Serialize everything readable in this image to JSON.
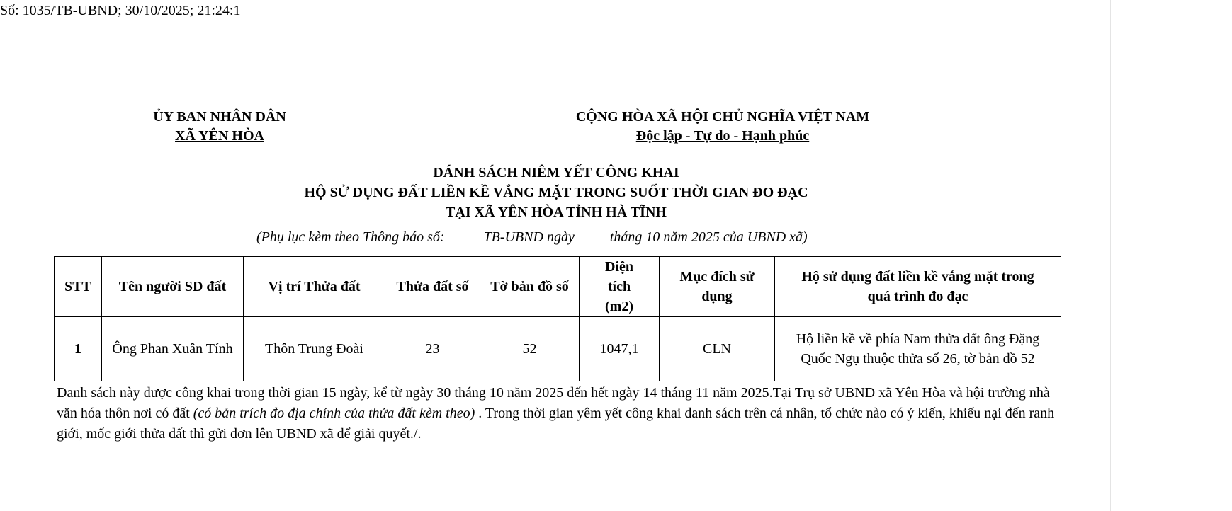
{
  "reference": "Số: 1035/TB-UBND; 30/10/2025; 21:24:1",
  "left_header": {
    "line1": "ỦY BAN NHÂN DÂN",
    "line2": "XÃ YÊN HÒA"
  },
  "right_header": {
    "line1": "CỘNG HÒA XÃ HỘI CHỦ NGHĨA VIỆT NAM",
    "line2": "Độc lập - Tự do - Hạnh phúc"
  },
  "title": {
    "line1": "DÁNH SÁCH NIÊM YẾT CÔNG KHAI",
    "line2": "HỘ SỬ DỤNG ĐẤT LIỀN KỀ VẮNG MẶT TRONG SUỐT THỜI GIAN ĐO ĐẠC",
    "line3": "TẠI XÃ YÊN HÒA TỈNH HÀ TĨNH"
  },
  "subtitle": "(Phụ lục kèm theo Thông báo số:           TB-UBND ngày          tháng 10 năm 2025 của UBND xã)",
  "table": {
    "headers": [
      "STT",
      "Tên người SD đất",
      "Vị trí Thửa đất",
      "Thửa đất số",
      "Tờ bản đồ số",
      "Diện tích (m2)",
      "Mục đích sử dụng",
      "Hộ sử dụng đất liền kề vắng mặt trong quá trình đo đạc"
    ],
    "rows": [
      [
        "1",
        "Ông Phan Xuân Tính",
        "Thôn Trung Đoài",
        "23",
        "52",
        "1047,1",
        "CLN",
        "Hộ liền kề về phía Nam thửa đất ông Đặng Quốc Ngụ thuộc thửa số 26, tờ bản đồ 52"
      ]
    ]
  },
  "footer": {
    "part1": "Danh sách này được công khai trong thời gian 15 ngày,  kể từ ngày 30 tháng 10 năm 2025 đến hết ngày 14 tháng 11 năm 2025.Tại Trụ sở UBND xã Yên Hòa và hội trường nhà văn hóa thôn nơi có đất ",
    "italic": "(có bản trích đo địa chính của thửa đất kèm theo)",
    "part2": " . Trong thời gian yêm yết công khai danh sách trên cá nhân, tổ chức nào có ý kiến, khiếu nại đến ranh giới, mốc giới thửa đất thì gửi đơn lên UBND xã để giải quyết./."
  }
}
